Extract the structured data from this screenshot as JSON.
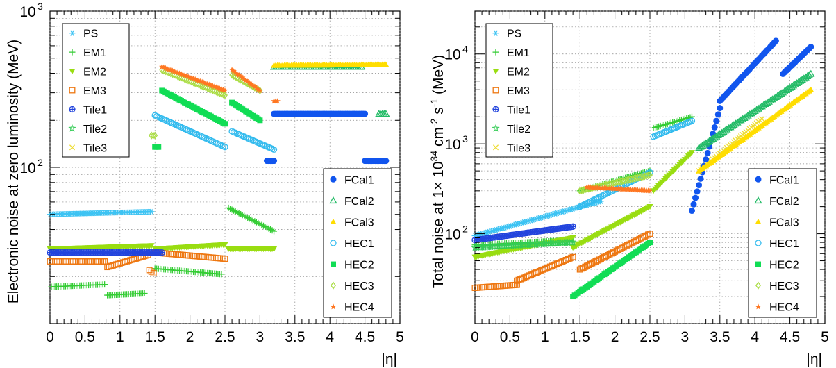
{
  "colors": {
    "PS": "#3cc3f3",
    "EM1": "#33cc33",
    "EM2": "#99dd11",
    "EM3": "#ee7711",
    "Tile1": "#2244dd",
    "Tile2": "#33cc55",
    "Tile3": "#eedd33",
    "FCal1": "#1155ee",
    "FCal2": "#22bb66",
    "FCal3": "#ffdd00",
    "HEC1": "#33bbee",
    "HEC2": "#11dd55",
    "HEC3": "#aadd44",
    "HEC4": "#ff7722"
  },
  "chart_data": [
    {
      "type": "scatter",
      "title": "",
      "xlabel": "|η|",
      "ylabel": "Electronic noise at zero luminosity (MeV)",
      "xlim": [
        0,
        5
      ],
      "ylim": [
        10,
        1000
      ],
      "yscale": "log",
      "grid": true,
      "x_ticks": [
        "0",
        "0.5",
        "1",
        "1.5",
        "2",
        "2.5",
        "3",
        "3.5",
        "4",
        "4.5",
        "5"
      ],
      "y_ticks": [
        {
          "value": 100,
          "base": "10",
          "exp": "2"
        },
        {
          "value": 1000,
          "base": "10",
          "exp": "3"
        }
      ],
      "legends": [
        {
          "position": "top-left",
          "items": [
            "PS",
            "EM1",
            "EM2",
            "EM3",
            "Tile1",
            "Tile2",
            "Tile3"
          ]
        },
        {
          "position": "bottom-right",
          "items": [
            "FCal1",
            "FCal2",
            "FCal3",
            "HEC1",
            "HEC2",
            "HEC3",
            "HEC4"
          ]
        }
      ],
      "series": [
        {
          "name": "PS",
          "segments": [
            [
              0,
              1.45,
              50,
              52
            ]
          ]
        },
        {
          "name": "EM1",
          "segments": [
            [
              0.02,
              0.78,
              17.2,
              17.8
            ],
            [
              0.82,
              1.35,
              15.2,
              15.6
            ],
            [
              1.5,
              2.45,
              22.5,
              20.7
            ],
            [
              2.55,
              3.2,
              55,
              39
            ]
          ]
        },
        {
          "name": "EM2",
          "segments": [
            [
              0,
              1.45,
              30,
              31.5
            ],
            [
              1.5,
              2.5,
              30,
              32
            ],
            [
              2.55,
              3.2,
              30,
              30
            ]
          ]
        },
        {
          "name": "EM3",
          "segments": [
            [
              0,
              0.78,
              25,
              25
            ],
            [
              0.82,
              1.4,
              23,
              27.5
            ],
            [
              1.42,
              1.48,
              22,
              21
            ],
            [
              1.5,
              2.5,
              28.5,
              26
            ]
          ]
        },
        {
          "name": "Tile1",
          "segments": [
            [
              0,
              1.6,
              28.5,
              28.5
            ]
          ]
        },
        {
          "name": "Tile2",
          "segments": []
        },
        {
          "name": "Tile3",
          "segments": []
        },
        {
          "name": "FCal1",
          "segments": [
            [
              3.1,
              3.2,
              110,
              110
            ],
            [
              3.2,
              4.5,
              220,
              220
            ],
            [
              4.5,
              4.8,
              110,
              110
            ]
          ]
        },
        {
          "name": "FCal2",
          "segments": [
            [
              3.2,
              4.45,
              440,
              440
            ],
            [
              4.7,
              4.8,
              220,
              220
            ]
          ]
        },
        {
          "name": "FCal3",
          "segments": [
            [
              3.2,
              4.8,
              450,
              455
            ]
          ]
        },
        {
          "name": "HEC1",
          "segments": [
            [
              1.5,
              2.5,
              215,
              135
            ],
            [
              2.6,
              3.2,
              170,
              130
            ]
          ]
        },
        {
          "name": "HEC2",
          "segments": [
            [
              1.5,
              1.55,
              135,
              135
            ],
            [
              1.6,
              2.5,
              310,
              190
            ],
            [
              2.6,
              3.0,
              260,
              200
            ]
          ]
        },
        {
          "name": "HEC3",
          "segments": [
            [
              1.45,
              1.5,
              160,
              160
            ],
            [
              1.6,
              2.5,
              420,
              290
            ],
            [
              2.6,
              3.0,
              390,
              310
            ]
          ]
        },
        {
          "name": "HEC4",
          "segments": [
            [
              1.6,
              2.5,
              440,
              310
            ],
            [
              2.6,
              3.0,
              420,
              310
            ],
            [
              3.2,
              3.25,
              265,
              265
            ]
          ]
        }
      ]
    },
    {
      "type": "scatter",
      "title": "",
      "xlabel": "|η|",
      "ylabel": "Total noise at 1× 10^34 cm^-2 s^-1 (MeV)",
      "xlim": [
        0,
        5
      ],
      "ylim": [
        10,
        30000
      ],
      "yscale": "log",
      "grid": true,
      "x_ticks": [
        "0",
        "0.5",
        "1",
        "1.5",
        "2",
        "2.5",
        "3",
        "3.5",
        "4",
        "4.5",
        "5"
      ],
      "y_ticks": [
        {
          "value": 100,
          "base": "10",
          "exp": "2"
        },
        {
          "value": 1000,
          "base": "10",
          "exp": "3"
        },
        {
          "value": 10000,
          "base": "10",
          "exp": "4"
        }
      ],
      "legends": [
        {
          "position": "top-left",
          "items": [
            "PS",
            "EM1",
            "EM2",
            "EM3",
            "Tile1",
            "Tile2",
            "Tile3"
          ]
        },
        {
          "position": "bottom-right",
          "items": [
            "FCal1",
            "FCal2",
            "FCal3",
            "HEC1",
            "HEC2",
            "HEC3",
            "HEC4"
          ]
        }
      ],
      "series": [
        {
          "name": "PS",
          "segments": [
            [
              0,
              1.8,
              95,
              230
            ]
          ]
        },
        {
          "name": "EM1",
          "segments": [
            [
              0,
              1.4,
              75,
              85
            ],
            [
              1.5,
              2.5,
              300,
              500
            ],
            [
              2.55,
              3.1,
              1500,
              2000
            ]
          ]
        },
        {
          "name": "EM2",
          "segments": [
            [
              0,
              1.4,
              55,
              90
            ],
            [
              1.4,
              2.5,
              70,
              200
            ],
            [
              2.55,
              3.1,
              300,
              800
            ]
          ]
        },
        {
          "name": "EM3",
          "segments": [
            [
              0,
              0.6,
              25,
              27
            ],
            [
              0.6,
              1.4,
              30,
              55
            ],
            [
              1.5,
              2.5,
              40,
              100
            ]
          ]
        },
        {
          "name": "Tile1",
          "segments": [
            [
              0,
              1.4,
              85,
              120
            ]
          ]
        },
        {
          "name": "Tile2",
          "segments": [
            [
              0,
              1.4,
              70,
              80
            ]
          ]
        },
        {
          "name": "Tile3",
          "segments": [
            [
              3.2,
              4.1,
              500,
              1900
            ]
          ]
        },
        {
          "name": "FCal1",
          "segments": [
            [
              3.1,
              3.5,
              180,
              2500
            ],
            [
              3.5,
              4.3,
              3000,
              14000
            ],
            [
              4.4,
              4.8,
              6000,
              12000
            ]
          ]
        },
        {
          "name": "FCal2",
          "segments": [
            [
              3.2,
              4.8,
              900,
              6000
            ]
          ]
        },
        {
          "name": "FCal3",
          "segments": [
            [
              3.2,
              4.8,
              500,
              4000
            ]
          ]
        },
        {
          "name": "HEC1",
          "segments": [
            [
              1.5,
              2.5,
              200,
              480
            ],
            [
              2.55,
              3.1,
              1200,
              1800
            ]
          ]
        },
        {
          "name": "HEC2",
          "segments": [
            [
              1.4,
              2.5,
              20,
              80
            ]
          ]
        },
        {
          "name": "HEC3",
          "segments": [
            [
              1.5,
              2.5,
              300,
              450
            ]
          ]
        },
        {
          "name": "HEC4",
          "segments": [
            [
              1.6,
              2.5,
              330,
              300
            ]
          ]
        }
      ]
    }
  ]
}
